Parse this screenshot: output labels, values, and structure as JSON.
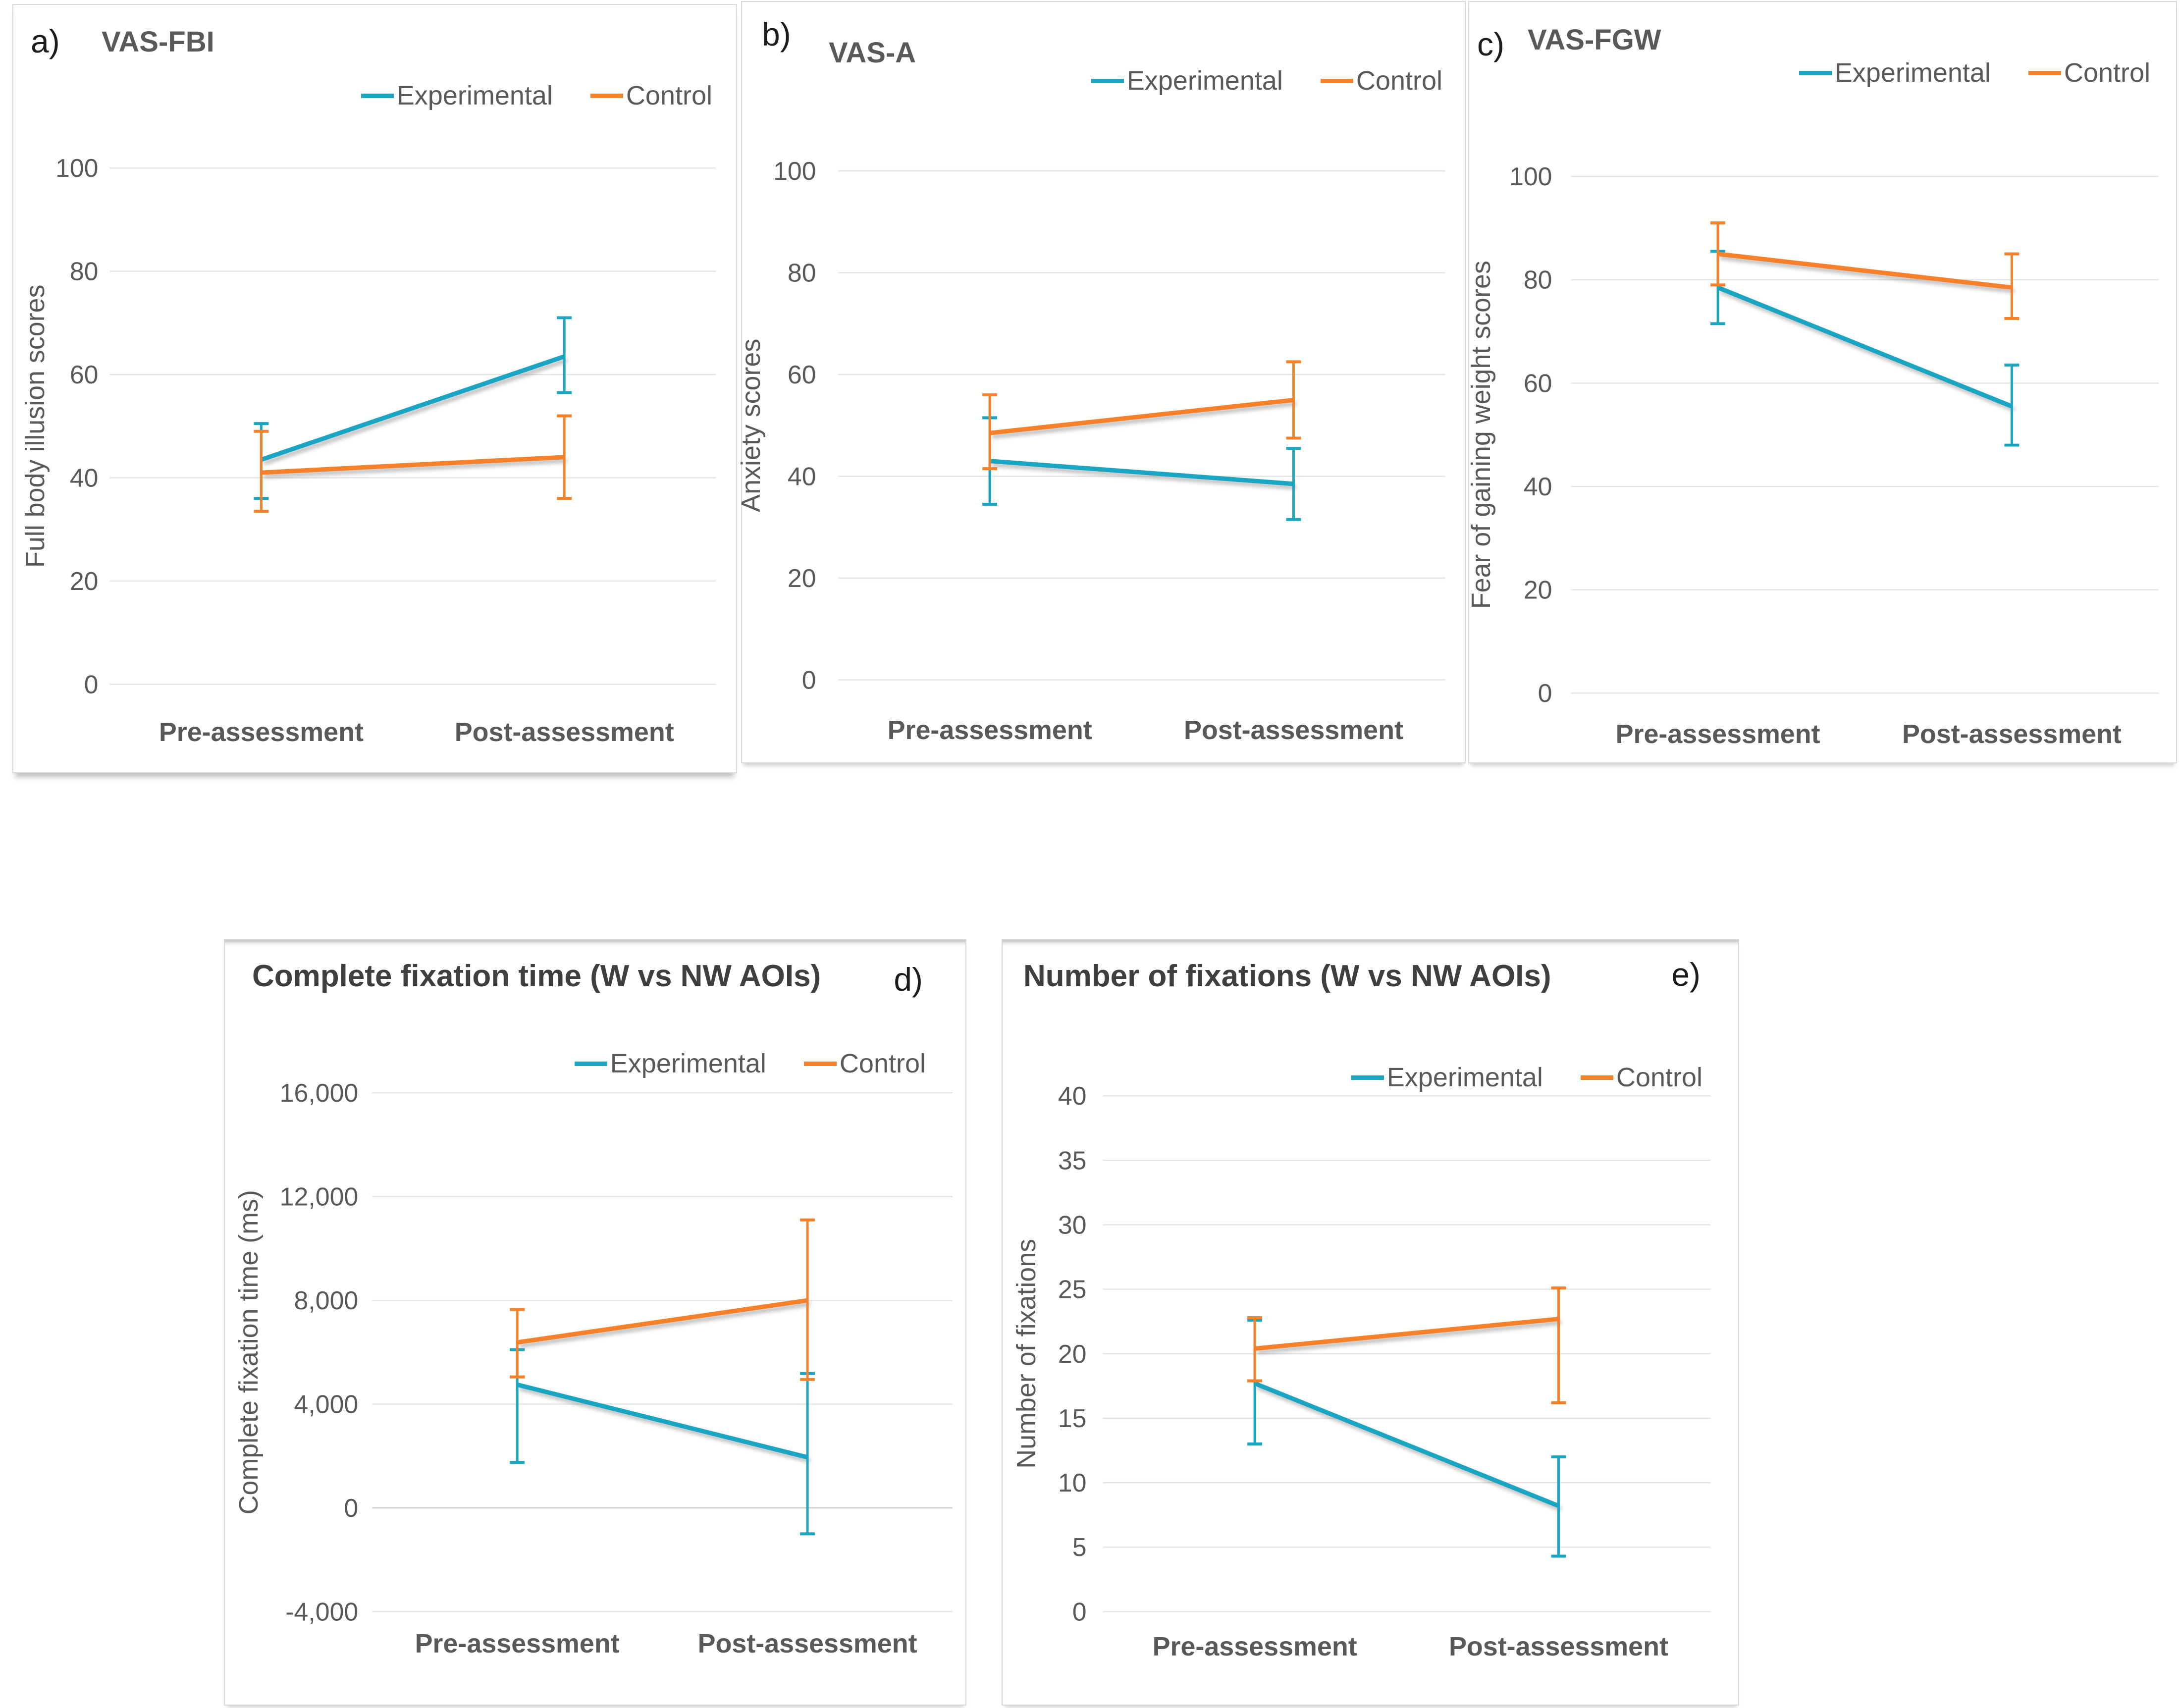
{
  "colors": {
    "experimental": "#1AA5C3",
    "control": "#F5812B",
    "grid": "#E4E4E4",
    "zero_line": "#C9C9C9",
    "axis_text": "#595959",
    "panel_border": "#D9D9D9",
    "title_text": "#595959",
    "title_text_dark": "#3F3F3F",
    "panel_letter": "#1C1C1C"
  },
  "chart_data": [
    {
      "id": "a",
      "panel_label": "a)",
      "type": "line",
      "title": "VAS-FBI",
      "ylabel": "Full body illusion scores",
      "xlabel": "",
      "categories": [
        "Pre-assessment",
        "Post-assessment"
      ],
      "ylim": [
        0,
        100
      ],
      "yticks": {
        "values": [
          0,
          20,
          40,
          60,
          80,
          100
        ],
        "labels": [
          "0",
          "20",
          "40",
          "60",
          "80",
          "100"
        ]
      },
      "grid": true,
      "legend_position": "top-right",
      "error_bars": true,
      "series": [
        {
          "name": "Experimental",
          "color_key": "experimental",
          "values": [
            43.5,
            63.5
          ],
          "err_low": [
            36,
            56.5
          ],
          "err_high": [
            50.5,
            71
          ]
        },
        {
          "name": "Control",
          "color_key": "control",
          "values": [
            41,
            44
          ],
          "err_low": [
            33.5,
            36
          ],
          "err_high": [
            49,
            52
          ]
        }
      ]
    },
    {
      "id": "b",
      "panel_label": "b)",
      "type": "line",
      "title": "VAS-A",
      "ylabel": "Anxiety scores",
      "xlabel": "",
      "categories": [
        "Pre-assessment",
        "Post-assessment"
      ],
      "ylim": [
        0,
        100
      ],
      "yticks": {
        "values": [
          0,
          20,
          40,
          60,
          80,
          100
        ],
        "labels": [
          "0",
          "20",
          "40",
          "60",
          "80",
          "100"
        ]
      },
      "grid": true,
      "legend_position": "top-right",
      "error_bars": true,
      "series": [
        {
          "name": "Experimental",
          "color_key": "experimental",
          "values": [
            43,
            38.5
          ],
          "err_low": [
            34.5,
            31.5
          ],
          "err_high": [
            51.5,
            45.5
          ]
        },
        {
          "name": "Control",
          "color_key": "control",
          "values": [
            48.5,
            55
          ],
          "err_low": [
            41.5,
            47.5
          ],
          "err_high": [
            56,
            62.5
          ]
        }
      ]
    },
    {
      "id": "c",
      "panel_label": "c)",
      "type": "line",
      "title": "VAS-FGW",
      "ylabel": "Fear of gaining weight scores",
      "xlabel": "",
      "categories": [
        "Pre-assessment",
        "Post-assessment"
      ],
      "ylim": [
        0,
        100
      ],
      "yticks": {
        "values": [
          0,
          20,
          40,
          60,
          80,
          100
        ],
        "labels": [
          "0",
          "20",
          "40",
          "60",
          "80",
          "100"
        ]
      },
      "grid": true,
      "legend_position": "top-right",
      "error_bars": true,
      "series": [
        {
          "name": "Experimental",
          "color_key": "experimental",
          "values": [
            78.5,
            55.5
          ],
          "err_low": [
            71.5,
            48
          ],
          "err_high": [
            85.5,
            63.5
          ]
        },
        {
          "name": "Control",
          "color_key": "control",
          "values": [
            85,
            78.5
          ],
          "err_low": [
            79,
            72.5
          ],
          "err_high": [
            91,
            85
          ]
        }
      ]
    },
    {
      "id": "d",
      "panel_label": "d)",
      "type": "line",
      "title": "Complete fixation time (W vs NW AOIs)",
      "ylabel": "Complete fixation time (ms)",
      "xlabel": "",
      "categories": [
        "Pre-assessment",
        "Post-assessment"
      ],
      "ylim": [
        -4000,
        16000
      ],
      "yticks": {
        "values": [
          -4000,
          0,
          4000,
          8000,
          12000,
          16000
        ],
        "labels": [
          "-4,000",
          "0",
          "4,000",
          "8,000",
          "12,000",
          "16,000"
        ]
      },
      "grid": true,
      "zero_line_dark": true,
      "legend_position": "top-right",
      "error_bars": true,
      "series": [
        {
          "name": "Experimental",
          "color_key": "experimental",
          "values": [
            4750,
            1950
          ],
          "err_low": [
            1750,
            -1000
          ],
          "err_high": [
            6100,
            5180
          ]
        },
        {
          "name": "Control",
          "color_key": "control",
          "values": [
            6380,
            8000
          ],
          "err_low": [
            5050,
            4950
          ],
          "err_high": [
            7650,
            11100
          ]
        }
      ]
    },
    {
      "id": "e",
      "panel_label": "e)",
      "type": "line",
      "title": "Number of fixations (W vs NW AOIs)",
      "ylabel": "Number of fixations",
      "xlabel": "",
      "categories": [
        "Pre-assessment",
        "Post-assessment"
      ],
      "ylim": [
        0,
        40
      ],
      "yticks": {
        "values": [
          0,
          5,
          10,
          15,
          20,
          25,
          30,
          35,
          40
        ],
        "labels": [
          "0",
          "5",
          "10",
          "15",
          "20",
          "25",
          "30",
          "35",
          "40"
        ]
      },
      "grid": true,
      "legend_position": "top-right",
      "error_bars": true,
      "series": [
        {
          "name": "Experimental",
          "color_key": "experimental",
          "values": [
            17.7,
            8.2
          ],
          "err_low": [
            13,
            4.3
          ],
          "err_high": [
            22.6,
            12
          ]
        },
        {
          "name": "Control",
          "color_key": "control",
          "values": [
            20.4,
            22.7
          ],
          "err_low": [
            17.9,
            16.2
          ],
          "err_high": [
            22.8,
            25.1
          ]
        }
      ]
    }
  ]
}
